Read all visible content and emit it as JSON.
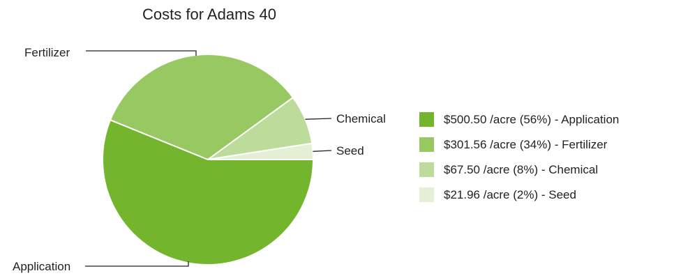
{
  "chart_data": {
    "type": "pie",
    "title": "Costs for Adams 40",
    "slices": [
      {
        "label": "Application",
        "value": 500.5,
        "percent": 56,
        "color": "#73b52c",
        "legend": "$500.50 /acre (56%) - Application"
      },
      {
        "label": "Fertilizer",
        "value": 301.56,
        "percent": 34,
        "color": "#97c862",
        "legend": "$301.56 /acre (34%) - Fertilizer"
      },
      {
        "label": "Chemical",
        "value": 67.5,
        "percent": 8,
        "color": "#bddc9c",
        "legend": "$67.50 /acre (8%) - Chemical"
      },
      {
        "label": "Seed",
        "value": 21.96,
        "percent": 2,
        "color": "#e3f0d6",
        "legend": "$21.96 /acre (2%) - Seed"
      }
    ],
    "legend_position": "right"
  }
}
